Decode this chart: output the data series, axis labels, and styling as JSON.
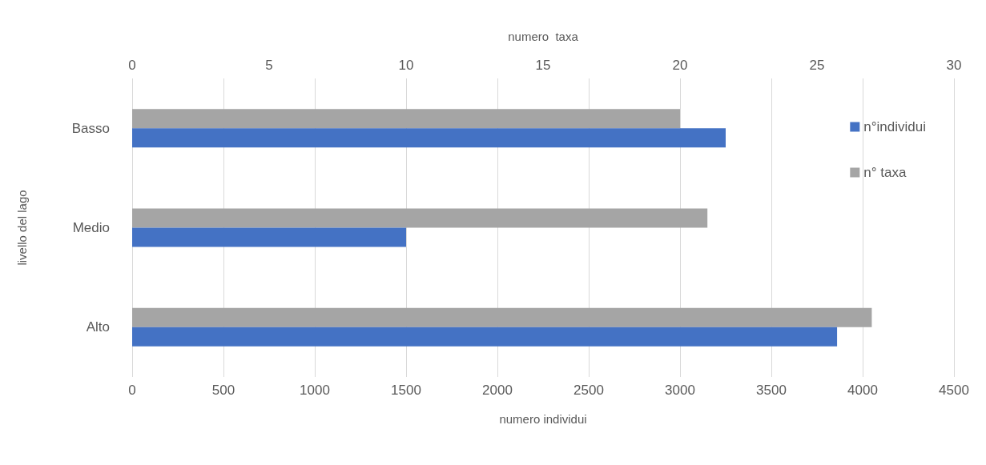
{
  "chart_data": {
    "type": "bar",
    "orientation": "horizontal",
    "xlabel": "numero individui",
    "x2label": "numero  taxa",
    "ylabel": "livello del lago",
    "categories": [
      "Basso",
      "Medio",
      "Alto"
    ],
    "series": [
      {
        "name": "n°individui",
        "color": "#4472c4",
        "values": [
          3250,
          1500,
          3860
        ]
      },
      {
        "name": "n° taxa",
        "color": "#a5a5a5",
        "values": [
          20,
          21,
          27
        ],
        "axis": "x2"
      }
    ],
    "xlim": [
      0,
      4500
    ],
    "xticks": [
      0,
      500,
      1000,
      1500,
      2000,
      2500,
      3000,
      3500,
      4000,
      4500
    ],
    "x2lim": [
      0,
      30
    ],
    "x2ticks": [
      0,
      5,
      10,
      15,
      20,
      25,
      30
    ],
    "grid": "x",
    "legend": "top right"
  }
}
